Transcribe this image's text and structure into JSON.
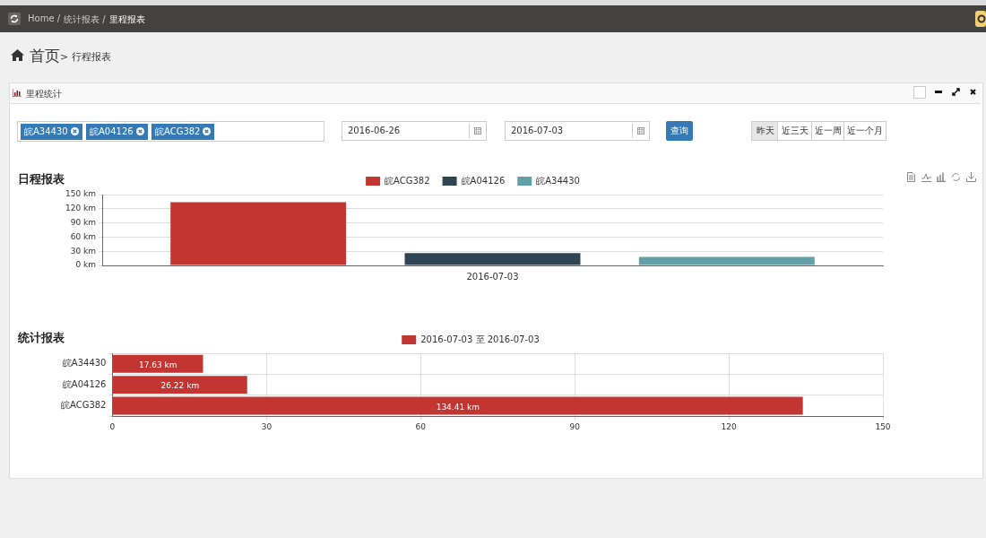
{
  "chart_data": [
    {
      "type": "other",
      "title": "里程统计",
      "annotations": [
        "Home /",
        "统计报表 /",
        "里程报表",
        "首页",
        "> 行程报表",
        "皖A34430",
        "皖A04126",
        "皖ACG382",
        "2016-06-26",
        "2016-07-03",
        "查询",
        "昨天",
        "近三天",
        "近一周",
        "近一个月"
      ]
    },
    {
      "type": "bar",
      "title": "日程报表",
      "categories": [
        "2016-07-03"
      ],
      "series": [
        {
          "name": "皖ACG382",
          "color": "#c23531",
          "values": [
            134
          ]
        },
        {
          "name": "皖A04126",
          "color": "#2f4554",
          "values": [
            26
          ]
        },
        {
          "name": "皖A34430",
          "color": "#61a0a8",
          "values": [
            18
          ]
        }
      ],
      "ylim": [
        0,
        150
      ],
      "yticks": [
        {
          "value": 0,
          "label": "0 km"
        },
        {
          "value": 30,
          "label": "30 km"
        },
        {
          "value": 60,
          "label": "60 km"
        },
        {
          "value": 90,
          "label": "90 km"
        },
        {
          "value": 120,
          "label": "120 km"
        },
        {
          "value": 150,
          "label": "150 km"
        }
      ],
      "grid": "y",
      "legend": "top"
    },
    {
      "type": "bar",
      "orientation": "horizontal",
      "title": "统计报表",
      "categories": [
        "皖A34430",
        "皖A04126",
        "皖ACG382"
      ],
      "series": [
        {
          "name": "2016-07-03 至 2016-07-03",
          "color": "#c23531",
          "values": [
            17.63,
            26.22,
            134.41
          ],
          "value_labels": [
            "17.63 km",
            "26.22 km",
            "134.41 km"
          ]
        }
      ],
      "xlim": [
        0,
        150
      ],
      "xticks": [
        0,
        30,
        60,
        90,
        120,
        150
      ],
      "grid": true,
      "legend": "top"
    }
  ]
}
